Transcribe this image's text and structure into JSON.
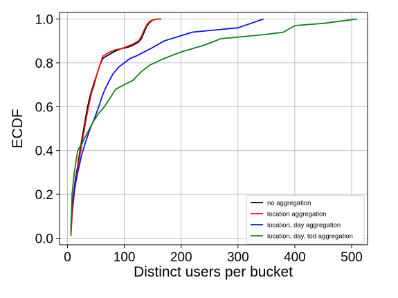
{
  "chart_data": {
    "type": "line",
    "title": "",
    "xlabel": "Distinct users per bucket",
    "ylabel": "ECDF",
    "xlim": [
      -14,
      528
    ],
    "ylim": [
      -0.03,
      1.03
    ],
    "x_ticks": [
      0,
      100,
      200,
      300,
      400,
      500
    ],
    "y_ticks": [
      0.0,
      0.2,
      0.4,
      0.6,
      0.8,
      1.0
    ],
    "x_tick_labels": [
      "0",
      "100",
      "200",
      "300",
      "400",
      "500"
    ],
    "y_tick_labels": [
      "0.0",
      "0.2",
      "0.4",
      "0.6",
      "0.8",
      "1.0"
    ],
    "grid": true,
    "legend_position": "bottom-right",
    "series": [
      {
        "name": "no aggregation",
        "color": "#000000",
        "x": [
          6,
          8,
          11,
          14,
          18,
          22,
          26,
          30,
          34,
          38,
          42,
          47,
          52,
          57,
          62,
          68,
          75,
          85,
          95,
          105,
          115,
          125,
          130,
          135,
          140,
          145,
          150,
          155,
          160,
          165
        ],
        "y": [
          0.02,
          0.12,
          0.2,
          0.27,
          0.33,
          0.4,
          0.46,
          0.52,
          0.58,
          0.63,
          0.67,
          0.71,
          0.75,
          0.79,
          0.82,
          0.83,
          0.84,
          0.855,
          0.865,
          0.87,
          0.88,
          0.895,
          0.91,
          0.94,
          0.97,
          0.985,
          0.995,
          0.998,
          1.0,
          1.0
        ]
      },
      {
        "name": "location aggregation",
        "color": "#ee1111",
        "x": [
          6,
          8,
          11,
          14,
          18,
          22,
          26,
          30,
          34,
          38,
          42,
          47,
          52,
          57,
          62,
          68,
          75,
          85,
          95,
          105,
          115,
          125,
          130,
          135,
          140,
          145,
          150,
          155,
          160,
          165
        ],
        "y": [
          0.01,
          0.1,
          0.18,
          0.25,
          0.32,
          0.38,
          0.44,
          0.5,
          0.56,
          0.61,
          0.66,
          0.7,
          0.75,
          0.79,
          0.83,
          0.84,
          0.85,
          0.86,
          0.865,
          0.875,
          0.885,
          0.9,
          0.92,
          0.95,
          0.975,
          0.99,
          0.995,
          0.998,
          1.0,
          1.0
        ]
      },
      {
        "name": "location, day aggregation",
        "color": "#1010ee",
        "x": [
          6,
          8,
          12,
          18,
          25,
          32,
          40,
          48,
          55,
          60,
          66,
          72,
          80,
          90,
          100,
          110,
          120,
          135,
          150,
          170,
          195,
          220,
          260,
          300,
          345
        ],
        "y": [
          0.05,
          0.15,
          0.22,
          0.3,
          0.38,
          0.44,
          0.5,
          0.55,
          0.6,
          0.64,
          0.68,
          0.71,
          0.75,
          0.78,
          0.8,
          0.82,
          0.83,
          0.85,
          0.87,
          0.9,
          0.92,
          0.94,
          0.95,
          0.96,
          1.0
        ]
      },
      {
        "name": "location, day, tod aggregation",
        "color": "#108010",
        "x": [
          6,
          8,
          12,
          18,
          25,
          35,
          45,
          55,
          65,
          75,
          85,
          100,
          115,
          130,
          145,
          170,
          200,
          240,
          270,
          310,
          350,
          380,
          400,
          450,
          510
        ],
        "y": [
          0.02,
          0.2,
          0.3,
          0.4,
          0.43,
          0.48,
          0.53,
          0.57,
          0.6,
          0.64,
          0.68,
          0.7,
          0.72,
          0.76,
          0.79,
          0.82,
          0.85,
          0.88,
          0.91,
          0.92,
          0.93,
          0.94,
          0.97,
          0.98,
          1.0
        ]
      }
    ]
  }
}
